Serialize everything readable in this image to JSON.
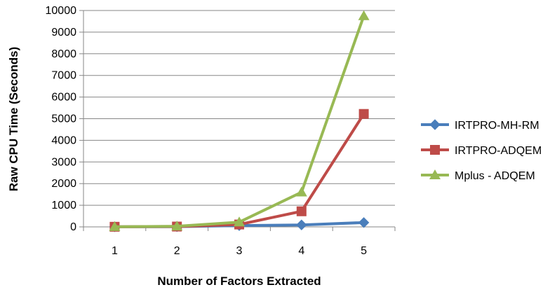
{
  "chart_data": {
    "type": "line",
    "title": "",
    "xlabel": "Number of Factors Extracted",
    "ylabel": "Raw CPU Time (Seconds)",
    "x": [
      1,
      2,
      3,
      4,
      5
    ],
    "x_tick_labels": [
      "1",
      "2",
      "3",
      "4",
      "5"
    ],
    "ylim": [
      0,
      10000
    ],
    "y_ticks": [
      0,
      1000,
      2000,
      3000,
      4000,
      5000,
      6000,
      7000,
      8000,
      9000,
      10000
    ],
    "grid": "horizontal",
    "legend_position": "right",
    "series": [
      {
        "name": "IRTPRO-MH-RM",
        "marker": "diamond",
        "color": "#4a7ebb",
        "values": [
          5,
          10,
          60,
          90,
          200
        ]
      },
      {
        "name": "IRTPRO-ADQEM",
        "marker": "square",
        "color": "#be4b48",
        "values": [
          5,
          15,
          110,
          720,
          5220
        ]
      },
      {
        "name": "Mplus - ADQEM",
        "marker": "triangle",
        "color": "#98b954",
        "values": [
          5,
          30,
          220,
          1600,
          9750
        ]
      }
    ]
  }
}
